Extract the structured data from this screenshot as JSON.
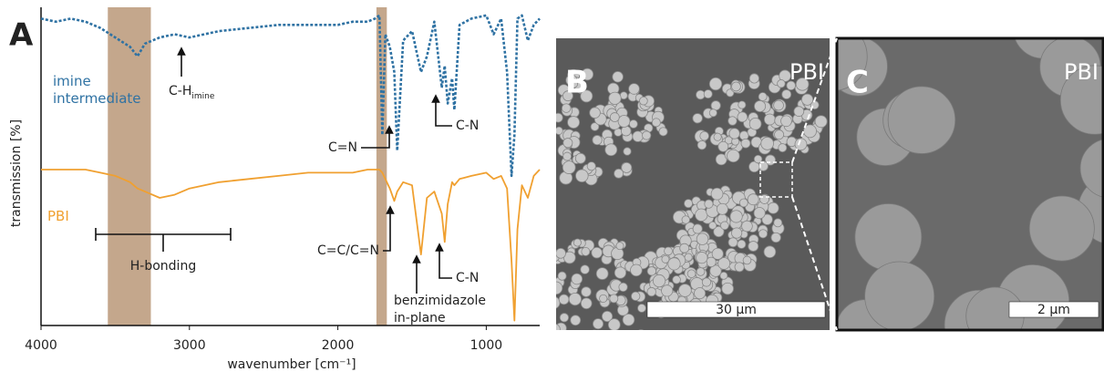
{
  "chart_data": {
    "type": "line",
    "panel_label": "A",
    "xlabel": "wavenumber [cm⁻¹]",
    "ylabel": "transmission [%]",
    "xlim": [
      4000,
      640
    ],
    "xticks": [
      4000,
      3000,
      2000,
      1000
    ],
    "ylim": [
      0,
      100
    ],
    "x": [
      4000,
      3900,
      3800,
      3700,
      3600,
      3500,
      3400,
      3350,
      3300,
      3200,
      3100,
      3000,
      2900,
      2800,
      2600,
      2400,
      2200,
      2000,
      1900,
      1800,
      1750,
      1720,
      1700,
      1680,
      1650,
      1620,
      1600,
      1560,
      1500,
      1440,
      1400,
      1350,
      1300,
      1280,
      1260,
      1230,
      1215,
      1180,
      1100,
      1000,
      950,
      900,
      860,
      830,
      810,
      790,
      760,
      720,
      680,
      640
    ],
    "series": [
      {
        "name": "imine intermediate",
        "color": "#2f72a3",
        "dashed": true,
        "values": [
          97,
          96,
          97,
          96,
          94,
          91,
          88,
          85,
          89,
          91,
          92,
          91,
          92,
          93,
          94,
          95,
          95,
          95,
          96,
          96,
          97,
          98,
          60,
          92,
          88,
          80,
          55,
          90,
          93,
          80,
          85,
          96,
          75,
          82,
          70,
          78,
          68,
          95,
          97,
          98,
          92,
          97,
          80,
          47,
          60,
          97,
          98,
          90,
          95,
          97
        ]
      },
      {
        "name": "PBI",
        "color": "#f0a030",
        "dashed": false,
        "values": [
          49,
          49,
          49,
          49,
          48,
          47,
          45,
          43,
          42,
          40,
          41,
          43,
          44,
          45,
          46,
          47,
          48,
          48,
          48,
          49,
          49,
          49,
          48,
          46,
          43,
          39,
          42,
          45,
          44,
          22,
          40,
          42,
          35,
          26,
          38,
          45,
          44,
          46,
          47,
          48,
          46,
          47,
          43,
          20,
          1,
          30,
          44,
          40,
          47,
          49
        ]
      }
    ],
    "bands": [
      [
        3550,
        3260
      ],
      [
        1740,
        1670
      ]
    ],
    "band_color": "#c4a78c",
    "annotations": [
      {
        "text": "C-H",
        "sub": "imine"
      },
      {
        "text": "C=N"
      },
      {
        "text": "C-N"
      },
      {
        "text": "C=C/C=N"
      },
      {
        "text": "benzimidazole in-plane"
      },
      {
        "text": "C-N"
      },
      {
        "text": "H-bonding"
      }
    ]
  },
  "images": [
    {
      "label": "B",
      "caption": "PBI",
      "scale_bar": "30 µm"
    },
    {
      "label": "C",
      "caption": "PBI",
      "scale_bar": "2 µm"
    }
  ]
}
